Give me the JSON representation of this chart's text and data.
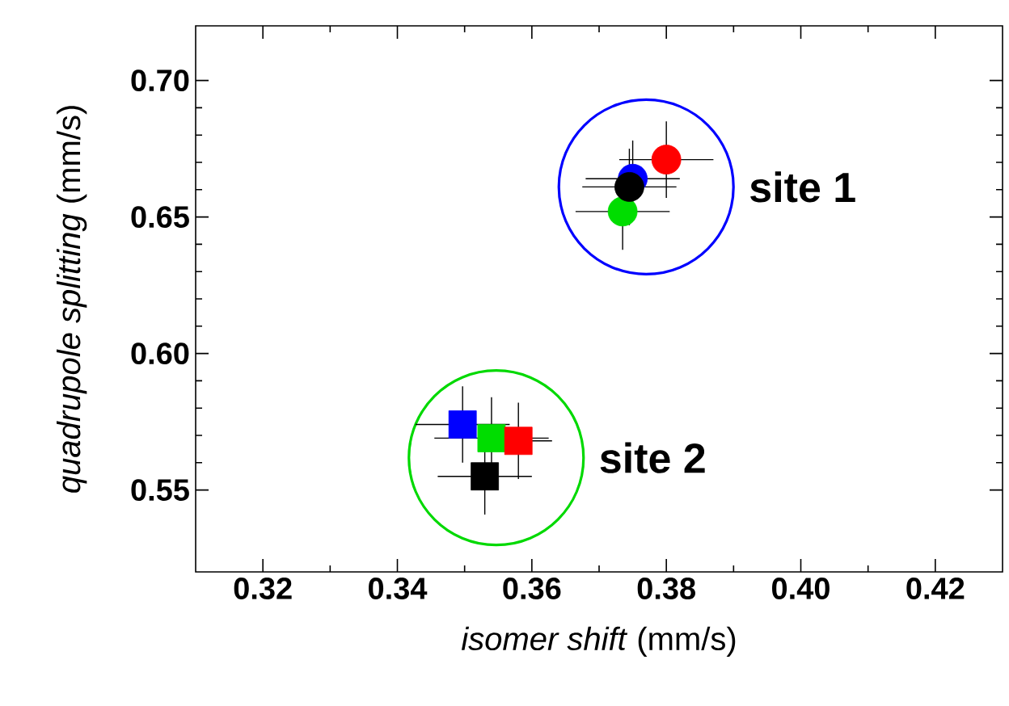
{
  "chart_data": {
    "type": "scatter",
    "xlabel": "*isomer shift* (mm/s)",
    "ylabel": "*quadrupole splitting* (mm/s)",
    "xlim": [
      0.31,
      0.43
    ],
    "ylim": [
      0.52,
      0.72
    ],
    "xticks": [
      {
        "value": 0.32,
        "label": "0.32"
      },
      {
        "value": 0.34,
        "label": "0.34"
      },
      {
        "value": 0.36,
        "label": "0.36"
      },
      {
        "value": 0.38,
        "label": "0.38"
      },
      {
        "value": 0.4,
        "label": "0.40"
      },
      {
        "value": 0.42,
        "label": "0.42"
      }
    ],
    "yticks": [
      {
        "value": 0.55,
        "label": "0.55"
      },
      {
        "value": 0.6,
        "label": "0.60"
      },
      {
        "value": 0.65,
        "label": "0.65"
      },
      {
        "value": 0.7,
        "label": "0.70"
      }
    ],
    "annotations": [
      {
        "text": "site 1",
        "x": 0.377,
        "y": 0.661
      },
      {
        "text": "site 2",
        "x": 0.3547,
        "y": 0.5618
      }
    ],
    "series": [
      {
        "color": "#0000ff",
        "marker": "circle",
        "x": [
          0.375
        ],
        "values": [
          0.664
        ],
        "errors": [
          0.014
        ],
        "xerrors": [
          0.007
        ]
      },
      {
        "color": "#ff0000",
        "marker": "circle",
        "x": [
          0.38
        ],
        "values": [
          0.671
        ],
        "errors": [
          0.014
        ],
        "xerrors": [
          0.007
        ]
      },
      {
        "color": "#00dd00",
        "marker": "circle",
        "x": [
          0.3735
        ],
        "values": [
          0.652
        ],
        "errors": [
          0.014
        ],
        "xerrors": [
          0.007
        ]
      },
      {
        "color": "#000000",
        "marker": "circle",
        "x": [
          0.3745
        ],
        "values": [
          0.661
        ],
        "errors": [
          0.014
        ],
        "xerrors": [
          0.007
        ]
      },
      {
        "color": "#0000ff",
        "marker": "square",
        "x": [
          0.3497
        ],
        "values": [
          0.574
        ],
        "errors": [
          0.014
        ],
        "xerrors": [
          0.007
        ]
      },
      {
        "color": "#00dd00",
        "marker": "square",
        "x": [
          0.354
        ],
        "values": [
          0.569
        ],
        "errors": [
          0.015
        ],
        "xerrors": [
          0.0085
        ]
      },
      {
        "color": "#ff0000",
        "marker": "square",
        "x": [
          0.358
        ],
        "values": [
          0.568
        ],
        "errors": [
          0.014
        ],
        "xerrors": [
          0.005
        ]
      },
      {
        "color": "#000000",
        "marker": "square",
        "x": [
          0.353
        ],
        "values": [
          0.555
        ],
        "errors": [
          0.014
        ],
        "xerrors": [
          0.007
        ]
      }
    ]
  }
}
